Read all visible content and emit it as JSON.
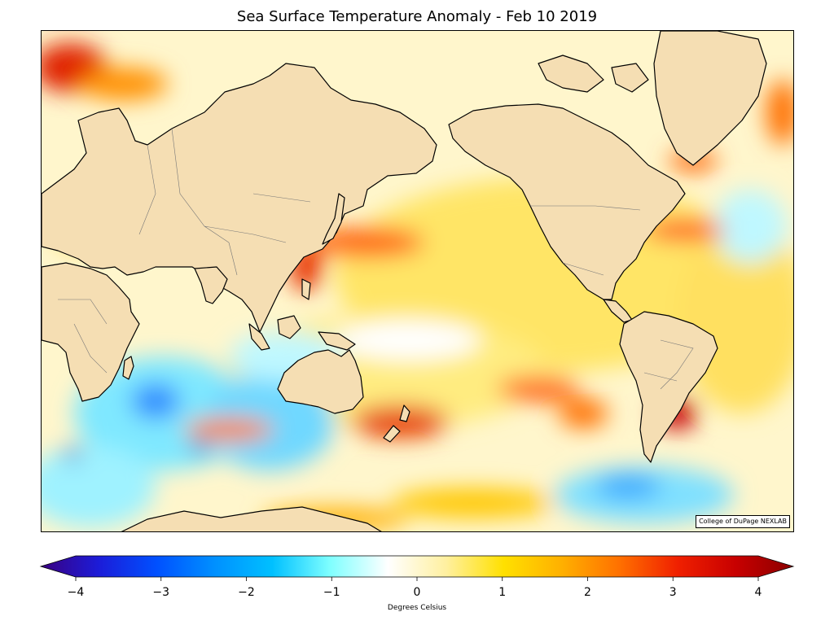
{
  "title": "Sea Surface Temperature Anomaly - Feb 10 2019",
  "credit": "College of DuPage NEXLAB",
  "colorbar": {
    "label": "Degrees Celsius",
    "range": [
      -4,
      4
    ],
    "ticks": [
      "−4",
      "−3",
      "−2",
      "−1",
      "0",
      "1",
      "2",
      "3",
      "4"
    ],
    "stops": [
      "#3a0080",
      "#1c1cd8",
      "#0050ff",
      "#0090ff",
      "#00c0ff",
      "#7fffff",
      "#ffffff",
      "#fff0a0",
      "#ffe000",
      "#ffb000",
      "#ff7000",
      "#f02000",
      "#c80000",
      "#8b0000"
    ]
  },
  "colors": {
    "land": "#f5deb3",
    "coastline": "#000000",
    "borders": "#777777",
    "open_ocean": "#fff9dc"
  }
}
